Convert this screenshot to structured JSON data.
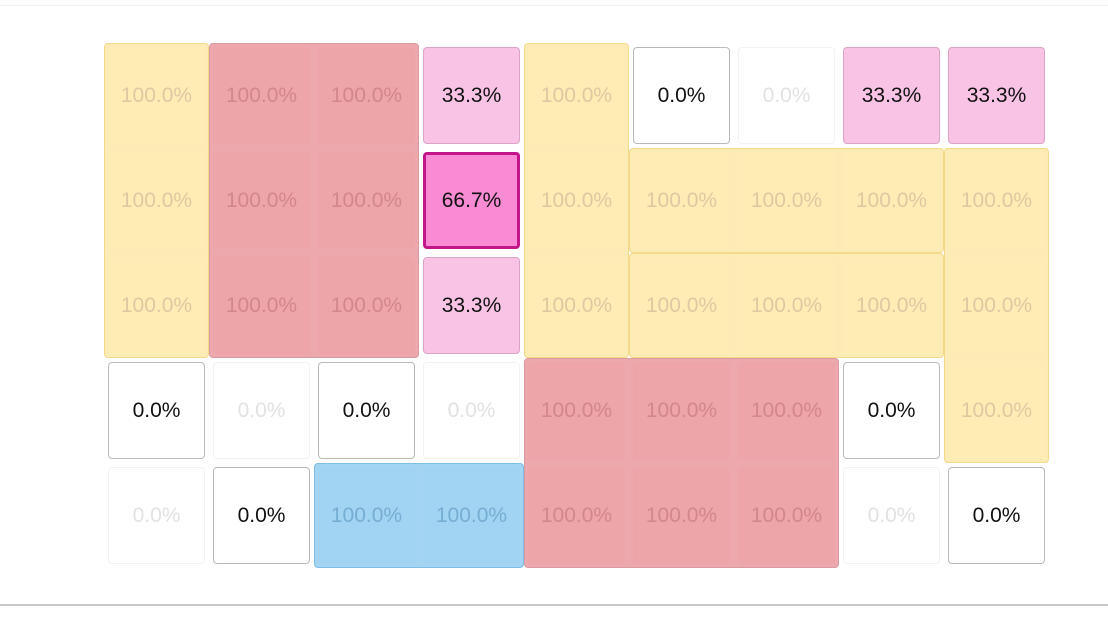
{
  "colors": {
    "yellow": "#fdebb6",
    "red": "#eda8ad",
    "blue": "#a3d4f2",
    "pink": "#f9c3e5",
    "selected": "#f88bd3",
    "selected_border": "#c2168b"
  },
  "grid": {
    "rows": 5,
    "cols": 9,
    "cells": [
      [
        "100.0%",
        "100.0%",
        "100.0%",
        "33.3%",
        "100.0%",
        "0.0%",
        "0.0%",
        "33.3%",
        "33.3%"
      ],
      [
        "100.0%",
        "100.0%",
        "100.0%",
        "66.7%",
        "100.0%",
        "100.0%",
        "100.0%",
        "100.0%",
        "100.0%"
      ],
      [
        "100.0%",
        "100.0%",
        "100.0%",
        "33.3%",
        "100.0%",
        "100.0%",
        "100.0%",
        "100.0%",
        "100.0%"
      ],
      [
        "0.0%",
        "0.0%",
        "0.0%",
        "0.0%",
        "100.0%",
        "100.0%",
        "100.0%",
        "0.0%",
        "100.0%"
      ],
      [
        "0.0%",
        "0.0%",
        "100.0%",
        "100.0%",
        "100.0%",
        "100.0%",
        "100.0%",
        "0.0%",
        "0.0%"
      ]
    ],
    "cell_styles": [
      [
        "yellow",
        "red",
        "red",
        "pink",
        "yellow",
        "empty",
        "faint",
        "pink",
        "pink"
      ],
      [
        "yellow",
        "red",
        "red",
        "selected",
        "yellow",
        "yellow",
        "yellow",
        "yellow",
        "yellow"
      ],
      [
        "yellow",
        "red",
        "red",
        "pink",
        "yellow",
        "yellow",
        "yellow",
        "yellow",
        "yellow"
      ],
      [
        "empty",
        "faint",
        "empty",
        "faint",
        "red",
        "red",
        "red",
        "empty",
        "yellow"
      ],
      [
        "faint",
        "empty",
        "blue",
        "blue",
        "red",
        "red",
        "red",
        "faint",
        "empty"
      ]
    ],
    "blocks": [
      {
        "color": "yellow",
        "row": 0,
        "col": 0,
        "rows": 3,
        "cols": 1
      },
      {
        "color": "red",
        "row": 0,
        "col": 1,
        "rows": 3,
        "cols": 2
      },
      {
        "color": "yellow",
        "row": 0,
        "col": 4,
        "rows": 3,
        "cols": 1
      },
      {
        "color": "yellow",
        "row": 1,
        "col": 5,
        "rows": 1,
        "cols": 3
      },
      {
        "color": "yellow",
        "row": 2,
        "col": 5,
        "rows": 1,
        "cols": 3
      },
      {
        "color": "yellow",
        "row": 1,
        "col": 8,
        "rows": 3,
        "cols": 1
      },
      {
        "color": "red",
        "row": 3,
        "col": 4,
        "rows": 2,
        "cols": 3
      },
      {
        "color": "blue",
        "row": 4,
        "col": 2,
        "rows": 1,
        "cols": 2
      }
    ]
  }
}
